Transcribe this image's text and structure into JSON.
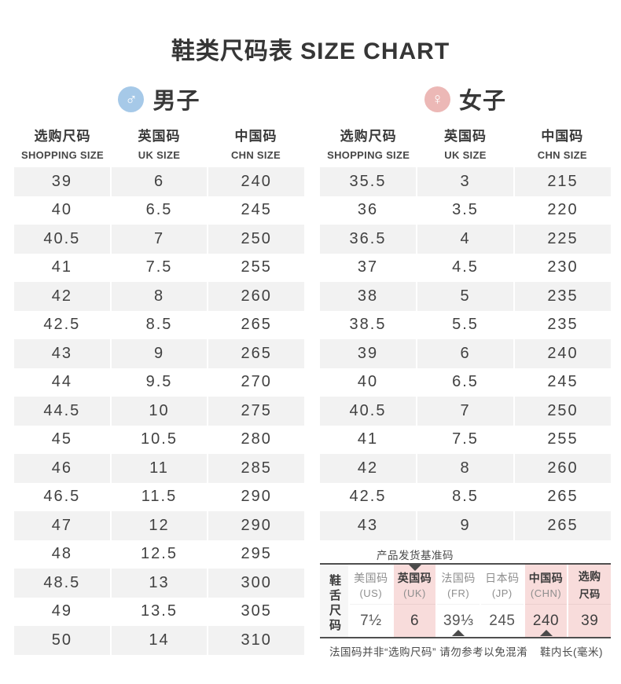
{
  "title": "鞋类尺码表 SIZE CHART",
  "columns": [
    {
      "cn": "选购尺码",
      "en": "SHOPPING SIZE"
    },
    {
      "cn": "英国码",
      "en": "UK SIZE"
    },
    {
      "cn": "中国码",
      "en": "CHN SIZE"
    }
  ],
  "men": {
    "label": "男子",
    "icon_glyph": "♂",
    "icon_color": "#a6c9e8",
    "rows": [
      [
        "39",
        "6",
        "240"
      ],
      [
        "40",
        "6.5",
        "245"
      ],
      [
        "40.5",
        "7",
        "250"
      ],
      [
        "41",
        "7.5",
        "255"
      ],
      [
        "42",
        "8",
        "260"
      ],
      [
        "42.5",
        "8.5",
        "265"
      ],
      [
        "43",
        "9",
        "265"
      ],
      [
        "44",
        "9.5",
        "270"
      ],
      [
        "44.5",
        "10",
        "275"
      ],
      [
        "45",
        "10.5",
        "280"
      ],
      [
        "46",
        "11",
        "285"
      ],
      [
        "46.5",
        "11.5",
        "290"
      ],
      [
        "47",
        "12",
        "290"
      ],
      [
        "48",
        "12.5",
        "295"
      ],
      [
        "48.5",
        "13",
        "300"
      ],
      [
        "49",
        "13.5",
        "305"
      ],
      [
        "50",
        "14",
        "310"
      ]
    ]
  },
  "women": {
    "label": "女子",
    "icon_glyph": "♀",
    "icon_color": "#ecb8b6",
    "rows": [
      [
        "35.5",
        "3",
        "215"
      ],
      [
        "36",
        "3.5",
        "220"
      ],
      [
        "36.5",
        "4",
        "225"
      ],
      [
        "37",
        "4.5",
        "230"
      ],
      [
        "38",
        "5",
        "235"
      ],
      [
        "38.5",
        "5.5",
        "235"
      ],
      [
        "39",
        "6",
        "240"
      ],
      [
        "40",
        "6.5",
        "245"
      ],
      [
        "40.5",
        "7",
        "250"
      ],
      [
        "41",
        "7.5",
        "255"
      ],
      [
        "42",
        "8",
        "260"
      ],
      [
        "42.5",
        "8.5",
        "265"
      ],
      [
        "43",
        "9",
        "265"
      ]
    ]
  },
  "reference": {
    "top_label": "产品发货基准码",
    "side_label": "鞋舌尺码",
    "highlight_color": "#f8dcdb",
    "columns": [
      {
        "name": "美国码",
        "sub": "(US)",
        "value": "7½",
        "highlight": false,
        "name_emphasis": false,
        "sub_emphasis": false,
        "marker_top": false,
        "marker_bottom": false
      },
      {
        "name": "英国码",
        "sub": "(UK)",
        "value": "6",
        "highlight": true,
        "name_emphasis": true,
        "sub_emphasis": false,
        "marker_top": true,
        "marker_bottom": false
      },
      {
        "name": "法国码",
        "sub": "(FR)",
        "value": "39⅓",
        "highlight": false,
        "name_emphasis": false,
        "sub_emphasis": false,
        "marker_top": false,
        "marker_bottom": true
      },
      {
        "name": "日本码",
        "sub": "(JP)",
        "value": "245",
        "highlight": false,
        "name_emphasis": false,
        "sub_emphasis": false,
        "marker_top": false,
        "marker_bottom": false
      },
      {
        "name": "中国码",
        "sub": "(CHN)",
        "value": "240",
        "highlight": true,
        "name_emphasis": true,
        "sub_emphasis": false,
        "marker_top": false,
        "marker_bottom": true
      },
      {
        "name": "选购",
        "sub": "尺码",
        "value": "39",
        "highlight": true,
        "name_emphasis": true,
        "sub_emphasis": true,
        "marker_top": false,
        "marker_bottom": false
      }
    ],
    "footnote_left": "法国码并非“选购尺码” 请勿参考以免混淆",
    "footnote_right": "鞋内长(毫米)"
  }
}
